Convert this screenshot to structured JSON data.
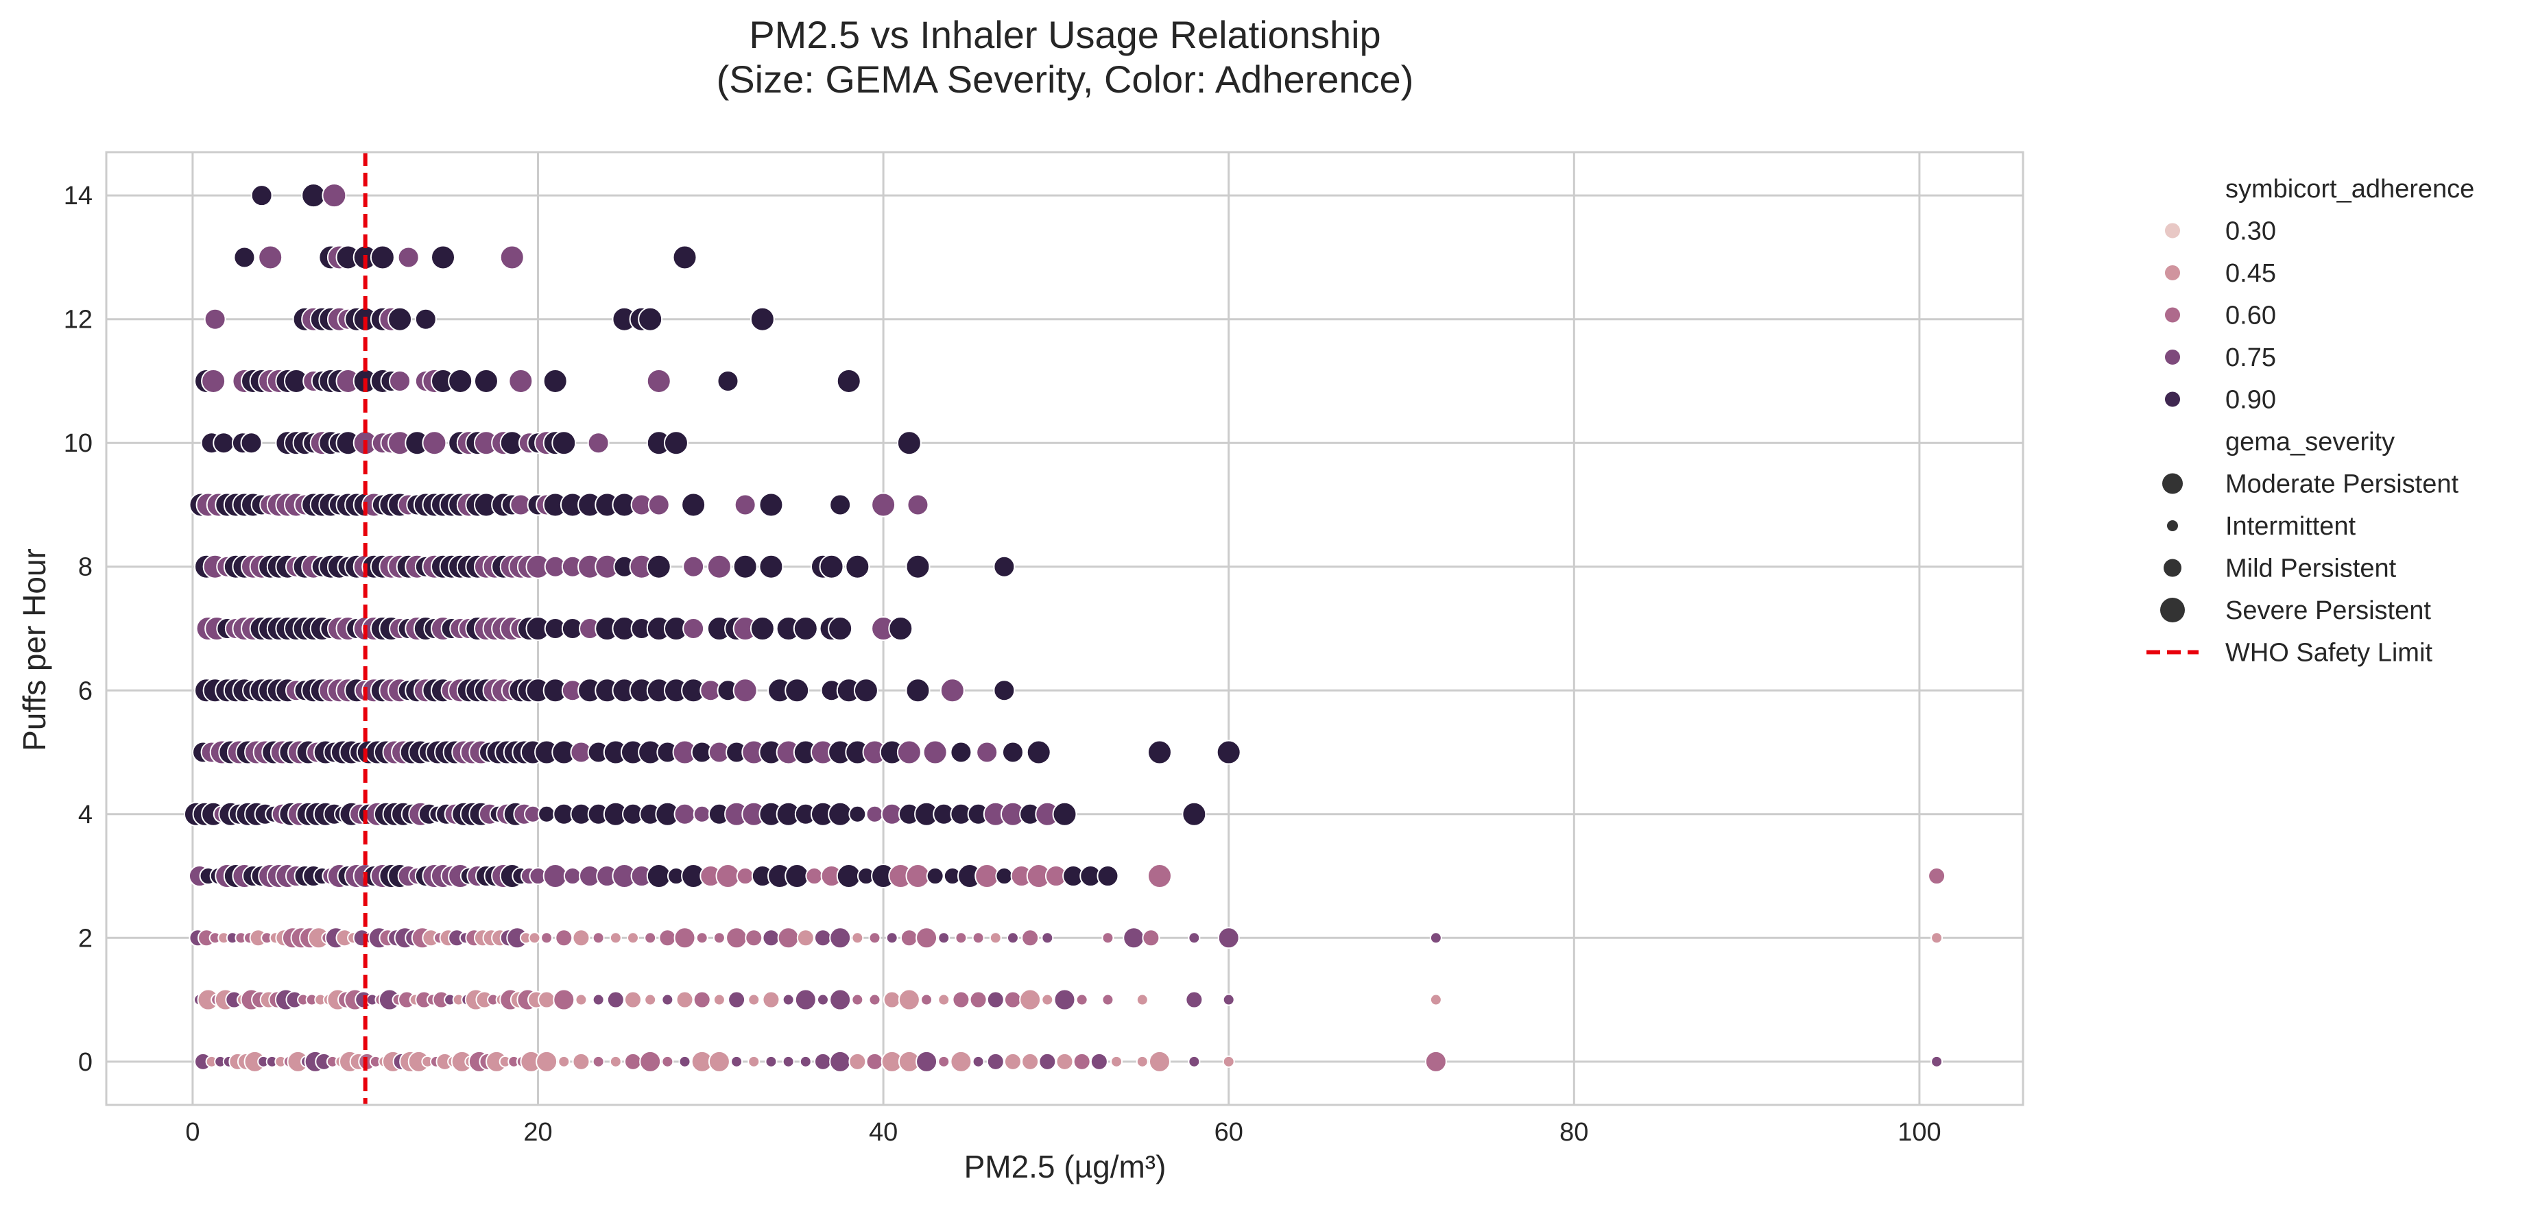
{
  "chart_data": {
    "type": "scatter",
    "title_lines": [
      "PM2.5 vs Inhaler Usage Relationship",
      "(Size: GEMA Severity, Color: Adherence)"
    ],
    "xlabel": "PM2.5 (µg/m³)",
    "ylabel": "Puffs per Hour",
    "xlim": [
      -5,
      106
    ],
    "ylim": [
      -0.7,
      14.7
    ],
    "xticks": [
      0,
      20,
      40,
      60,
      80,
      100
    ],
    "yticks": [
      0,
      2,
      4,
      6,
      8,
      10,
      12,
      14
    ],
    "grid": true,
    "legend_position": "outside-right",
    "reference_line": {
      "x": 10,
      "label": "WHO Safety Limit",
      "color": "#e8000b",
      "style": "dashed"
    },
    "hue_variable": "symbicort_adherence",
    "hue_levels": [
      {
        "label": "0.30",
        "value": 0.3,
        "color": "#e8c8c5"
      },
      {
        "label": "0.45",
        "value": 0.45,
        "color": "#d0949e"
      },
      {
        "label": "0.60",
        "value": 0.6,
        "color": "#ae6a8c"
      },
      {
        "label": "0.75",
        "value": 0.75,
        "color": "#7e4a7c"
      },
      {
        "label": "0.90",
        "value": 0.9,
        "color": "#3f2750"
      }
    ],
    "darkest_color": "#2a1c3d",
    "size_variable": "gema_severity",
    "size_levels": [
      {
        "label": "Moderate Persistent",
        "code": "M"
      },
      {
        "label": "Intermittent",
        "code": "I"
      },
      {
        "label": "Mild Persistent",
        "code": "L"
      },
      {
        "label": "Severe Persistent",
        "code": "S"
      }
    ],
    "rows": [
      {
        "y": 14,
        "x": [
          4,
          7,
          8.2
        ]
      },
      {
        "y": 13,
        "x": [
          3,
          4.5,
          8,
          8.5,
          9,
          10,
          11,
          12.5,
          14.5,
          18.5,
          28.5
        ]
      },
      {
        "y": 12,
        "x": [
          1.3,
          6.5,
          7,
          7.5,
          8,
          8.5,
          9,
          9.5,
          10,
          11,
          11.5,
          12,
          13.5,
          25,
          26,
          26.5,
          33
        ]
      },
      {
        "y": 11,
        "x": [
          0.8,
          1.2,
          3,
          3.5,
          4,
          4.5,
          5,
          5.5,
          6,
          7,
          7.5,
          8,
          8.5,
          9,
          10,
          11,
          11.5,
          12,
          13.5,
          14,
          14.5,
          15.5,
          17,
          19,
          21,
          27,
          31,
          38
        ]
      },
      {
        "y": 10,
        "x": [
          1.1,
          1.8,
          2.9,
          3.4,
          5.5,
          6,
          6.5,
          7,
          7.5,
          8,
          8.5,
          9,
          10,
          11,
          11.5,
          12,
          13,
          14,
          15.5,
          16,
          16.5,
          17,
          18,
          18.5,
          19.5,
          20,
          20.5,
          21,
          21.5,
          23.5,
          27,
          28,
          41.5
        ]
      },
      {
        "y": 9,
        "x": [
          0.5,
          0.9,
          1.5,
          2,
          2.5,
          3,
          3.5,
          4,
          4.5,
          5,
          5.5,
          6,
          6.5,
          7,
          7.5,
          8,
          8.5,
          9,
          9.5,
          10,
          10.5,
          11,
          11.5,
          12,
          12.5,
          13,
          13.5,
          14,
          14.5,
          15,
          15.5,
          16,
          16.5,
          17,
          18,
          18.5,
          19,
          20,
          20.5,
          21,
          22,
          23,
          24,
          25,
          26,
          27,
          29,
          32,
          33.5,
          37.5,
          40,
          42
        ]
      },
      {
        "y": 8,
        "x": [
          0.8,
          1.3,
          2,
          2.5,
          3,
          3.5,
          4,
          4.5,
          5,
          5.5,
          6,
          6.5,
          7,
          7.5,
          8,
          8.5,
          9,
          9.5,
          10,
          10.5,
          11,
          11.5,
          12,
          12.5,
          13,
          13.5,
          14,
          14.5,
          15,
          15.5,
          16,
          16.5,
          17,
          17.5,
          18,
          18.5,
          19,
          19.5,
          20,
          21,
          22,
          23,
          24,
          25,
          26,
          27,
          29,
          30.5,
          32,
          33.5,
          36.5,
          37,
          38.5,
          42,
          47
        ]
      },
      {
        "y": 7,
        "x": [
          0.9,
          1.4,
          2,
          2.5,
          3,
          3.5,
          4,
          4.5,
          5,
          5.5,
          6,
          6.5,
          7,
          7.5,
          8,
          8.5,
          9,
          9.5,
          10,
          10.5,
          11,
          11.5,
          12,
          12.5,
          13,
          13.5,
          14,
          14.5,
          15,
          15.5,
          16,
          16.5,
          17,
          17.5,
          18,
          18.5,
          19,
          19.5,
          20,
          21,
          22,
          23,
          24,
          25,
          26,
          27,
          28,
          29,
          30.5,
          31.5,
          32,
          33,
          34.5,
          35.5,
          37,
          37.5,
          40,
          41
        ]
      },
      {
        "y": 6,
        "x": [
          0.8,
          1.3,
          2,
          2.5,
          3,
          3.5,
          4,
          4.5,
          5,
          5.5,
          6,
          6.5,
          7,
          7.5,
          8,
          8.5,
          9,
          9.5,
          10,
          10.5,
          11,
          11.5,
          12,
          12.5,
          13,
          13.5,
          14,
          14.5,
          15,
          15.5,
          16,
          16.5,
          17,
          17.5,
          18,
          18.5,
          19,
          19.5,
          20,
          21,
          22,
          23,
          24,
          25,
          26,
          27,
          28,
          29,
          30,
          31,
          32,
          34,
          35,
          37,
          38,
          39,
          42,
          44,
          47
        ]
      },
      {
        "y": 5,
        "x": [
          0.6,
          1.1,
          1.7,
          2.2,
          2.7,
          3.2,
          3.7,
          4.2,
          4.7,
          5.2,
          5.7,
          6.2,
          6.7,
          7.2,
          7.7,
          8.2,
          8.7,
          9.2,
          9.7,
          10.2,
          10.7,
          11.2,
          11.7,
          12.2,
          12.7,
          13.2,
          13.7,
          14.2,
          14.7,
          15.2,
          15.7,
          16.2,
          16.7,
          17.2,
          17.7,
          18.2,
          18.7,
          19.2,
          19.7,
          20.5,
          21.5,
          22.5,
          23.5,
          24.5,
          25.5,
          26.5,
          27.5,
          28.5,
          29.5,
          30.5,
          31.5,
          32.5,
          33.5,
          34.5,
          35.5,
          36.5,
          37.5,
          38.5,
          39.5,
          40.5,
          41.5,
          43,
          44.5,
          46,
          47.5,
          49,
          56,
          60
        ]
      },
      {
        "y": 4,
        "x": [
          0.2,
          0.7,
          1.2,
          1.7,
          2.2,
          2.7,
          3.2,
          3.7,
          4.2,
          4.7,
          5.2,
          5.7,
          6.2,
          6.7,
          7.2,
          7.7,
          8.2,
          8.7,
          9.2,
          9.7,
          10.2,
          10.7,
          11.2,
          11.7,
          12.2,
          12.7,
          13.2,
          13.7,
          14.2,
          14.7,
          15.2,
          15.7,
          16.2,
          16.7,
          17.2,
          17.7,
          18.2,
          18.7,
          19.2,
          19.7,
          20.5,
          21.5,
          22.5,
          23.5,
          24.5,
          25.5,
          26.5,
          27.5,
          28.5,
          29.5,
          30.5,
          31.5,
          32.5,
          33.5,
          34.5,
          35.5,
          36.5,
          37.5,
          38.5,
          39.5,
          40.5,
          41.5,
          42.5,
          43.5,
          44.5,
          45.5,
          46.5,
          47.5,
          48.5,
          49.5,
          50.5,
          58
        ]
      },
      {
        "y": 3,
        "x": [
          0.4,
          0.9,
          1.5,
          2,
          2.5,
          3,
          3.5,
          4,
          4.5,
          5,
          5.5,
          6,
          6.5,
          7,
          7.5,
          8,
          8.5,
          9,
          9.5,
          10,
          10.5,
          11,
          11.5,
          12,
          12.5,
          13,
          13.5,
          14,
          14.5,
          15,
          15.5,
          16,
          16.5,
          17,
          17.5,
          18,
          18.5,
          19,
          19.5,
          20,
          21,
          22,
          23,
          24,
          25,
          26,
          27,
          28,
          29,
          30,
          31,
          32,
          33,
          34,
          35,
          36,
          37,
          38,
          39,
          40,
          41,
          42,
          43,
          44,
          45,
          46,
          47,
          48,
          49,
          50,
          51,
          52,
          53,
          56,
          101
        ]
      },
      {
        "y": 2,
        "x": [
          0.3,
          0.8,
          1.3,
          1.8,
          2.3,
          2.8,
          3.3,
          3.8,
          4.3,
          4.8,
          5.3,
          5.8,
          6.3,
          6.8,
          7.3,
          7.8,
          8.3,
          8.8,
          9.3,
          9.8,
          10.3,
          10.8,
          11.3,
          11.8,
          12.3,
          12.8,
          13.3,
          13.8,
          14.3,
          14.8,
          15.3,
          15.8,
          16.3,
          16.8,
          17.3,
          17.8,
          18.3,
          18.8,
          19.3,
          19.8,
          20.5,
          21.5,
          22.5,
          23.5,
          24.5,
          25.5,
          26.5,
          27.5,
          28.5,
          29.5,
          30.5,
          31.5,
          32.5,
          33.5,
          34.5,
          35.5,
          36.5,
          37.5,
          38.5,
          39.5,
          40.5,
          41.5,
          42.5,
          43.5,
          44.5,
          45.5,
          46.5,
          47.5,
          48.5,
          49.5,
          53,
          54.5,
          55.5,
          58,
          60,
          72,
          101
        ]
      },
      {
        "y": 1,
        "x": [
          0.4,
          0.9,
          1.4,
          1.9,
          2.4,
          2.9,
          3.4,
          3.9,
          4.4,
          4.9,
          5.4,
          5.9,
          6.4,
          6.9,
          7.4,
          7.9,
          8.4,
          8.9,
          9.4,
          9.9,
          10.4,
          10.9,
          11.4,
          11.9,
          12.4,
          12.9,
          13.4,
          13.9,
          14.4,
          14.9,
          15.4,
          15.9,
          16.4,
          16.9,
          17.4,
          17.9,
          18.4,
          18.9,
          19.4,
          19.9,
          20.5,
          21.5,
          22.5,
          23.5,
          24.5,
          25.5,
          26.5,
          27.5,
          28.5,
          29.5,
          30.5,
          31.5,
          32.5,
          33.5,
          34.5,
          35.5,
          36.5,
          37.5,
          38.5,
          39.5,
          40.5,
          41.5,
          42.5,
          43.5,
          44.5,
          45.5,
          46.5,
          47.5,
          48.5,
          49.5,
          50.5,
          51.5,
          53,
          55,
          58,
          60,
          72
        ]
      },
      {
        "y": 0,
        "x": [
          0.6,
          1.1,
          1.6,
          2.1,
          2.6,
          3.1,
          3.6,
          4.1,
          4.6,
          5.1,
          5.6,
          6.1,
          6.6,
          7.1,
          7.6,
          8.1,
          8.6,
          9.1,
          9.6,
          10.1,
          10.6,
          11.1,
          11.6,
          12.1,
          12.6,
          13.1,
          13.6,
          14.1,
          14.6,
          15.1,
          15.6,
          16.1,
          16.6,
          17.1,
          17.6,
          18.1,
          18.6,
          19.1,
          19.6,
          20.5,
          21.5,
          22.5,
          23.5,
          24.5,
          25.5,
          26.5,
          27.5,
          28.5,
          29.5,
          30.5,
          31.5,
          32.5,
          33.5,
          34.5,
          35.5,
          36.5,
          37.5,
          38.5,
          39.5,
          40.5,
          41.5,
          42.5,
          43.5,
          44.5,
          45.5,
          46.5,
          47.5,
          48.5,
          49.5,
          50.5,
          51.5,
          52.5,
          53.5,
          55,
          56,
          58,
          60,
          72,
          101
        ]
      }
    ]
  }
}
